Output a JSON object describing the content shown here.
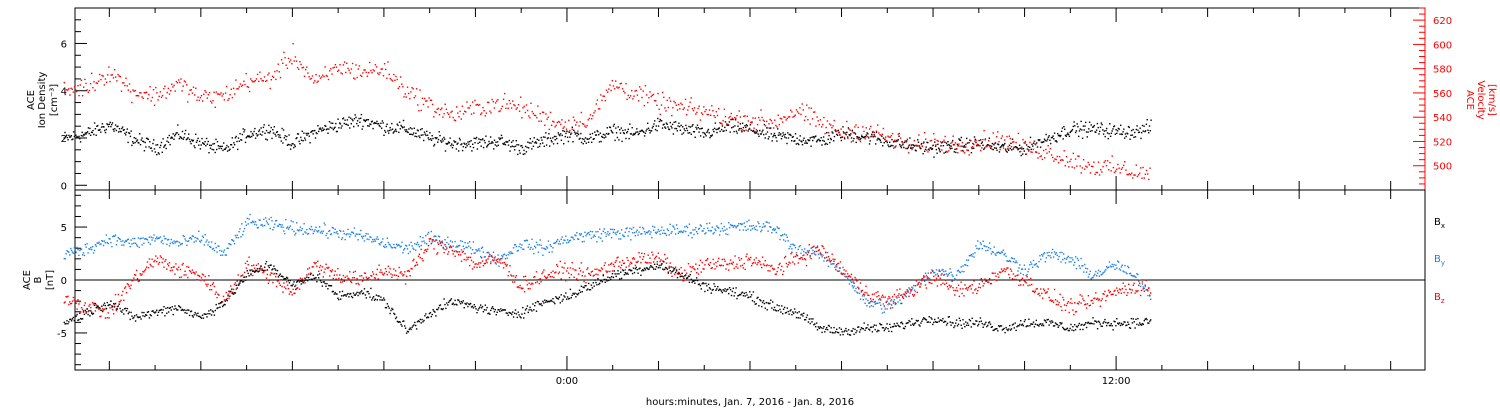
{
  "chart_data": [
    {
      "type": "scatter",
      "panel": "top",
      "left_axis": {
        "label_lines": [
          "ACE",
          "Ion Density",
          "[cm⁻³]"
        ],
        "ticks": [
          0,
          2,
          4,
          6
        ],
        "ylim": [
          -0.2,
          7.5
        ]
      },
      "right_axis": {
        "label_lines": [
          "ACE",
          "Velocity",
          "[km/s]"
        ],
        "ticks": [
          500,
          520,
          540,
          560,
          580,
          600,
          620
        ],
        "ylim": [
          480,
          630
        ]
      },
      "series": [
        {
          "color": "#000000",
          "axis": "left",
          "x_hours": [
            -11.0,
            -10.5,
            -10.0,
            -9.5,
            -9.0,
            -8.5,
            -8.0,
            -7.5,
            -7.0,
            -6.5,
            -6.0,
            -5.5,
            -5.0,
            -4.5,
            -4.0,
            -3.5,
            -3.0,
            -2.5,
            -2.0,
            -1.5,
            -1.0,
            -0.5,
            0.0,
            0.5,
            1.0,
            1.5,
            2.0,
            2.5,
            3.0,
            3.5,
            4.0,
            4.5,
            5.0,
            5.5,
            6.0,
            6.5,
            7.0,
            7.5,
            8.0,
            8.5,
            9.0,
            9.5,
            10.0,
            10.5,
            11.0,
            11.5,
            12.0,
            12.5,
            12.75
          ],
          "values": [
            2.0,
            2.2,
            2.6,
            2.0,
            1.6,
            2.2,
            1.8,
            1.5,
            2.2,
            2.4,
            1.8,
            2.3,
            2.6,
            2.8,
            2.5,
            2.4,
            2.0,
            1.8,
            1.8,
            1.9,
            1.6,
            1.9,
            2.2,
            2.0,
            2.3,
            2.2,
            2.6,
            2.4,
            2.2,
            2.5,
            2.4,
            2.1,
            2.0,
            1.9,
            2.2,
            2.1,
            1.9,
            1.7,
            1.6,
            1.7,
            1.8,
            1.6,
            1.6,
            2.0,
            2.4,
            2.4,
            2.3,
            2.3,
            2.5
          ]
        },
        {
          "color": "#ff0000",
          "axis": "right",
          "x_hours": [
            -11.0,
            -10.5,
            -10.0,
            -9.5,
            -9.0,
            -8.5,
            -8.0,
            -7.5,
            -7.0,
            -6.5,
            -6.0,
            -5.5,
            -5.0,
            -4.5,
            -4.0,
            -3.5,
            -3.0,
            -2.5,
            -2.0,
            -1.5,
            -1.0,
            -0.5,
            0.0,
            0.5,
            1.0,
            1.5,
            2.0,
            2.5,
            3.0,
            3.5,
            4.0,
            4.5,
            5.0,
            5.5,
            6.0,
            6.5,
            7.0,
            7.5,
            8.0,
            8.5,
            9.0,
            9.5,
            10.0,
            10.5,
            11.0,
            11.5,
            12.0,
            12.5,
            12.75
          ],
          "values": [
            562,
            566,
            578,
            562,
            558,
            568,
            556,
            558,
            570,
            572,
            592,
            568,
            582,
            578,
            580,
            562,
            550,
            542,
            548,
            552,
            548,
            540,
            534,
            540,
            568,
            560,
            552,
            548,
            545,
            540,
            538,
            536,
            546,
            536,
            528,
            530,
            524,
            516,
            520,
            518,
            520,
            522,
            515,
            512,
            505,
            500,
            498,
            495,
            492
          ]
        }
      ]
    },
    {
      "type": "scatter",
      "panel": "bottom",
      "left_axis": {
        "label_lines": [
          "ACE",
          "B",
          "[nT]"
        ],
        "ticks": [
          -5,
          0,
          5
        ],
        "ylim": [
          -8.5,
          8.5
        ]
      },
      "legend": [
        "Bx",
        "By",
        "Bz"
      ],
      "series": [
        {
          "name": "Bx",
          "color": "#000000",
          "x_hours": [
            -11.0,
            -10.5,
            -10.0,
            -9.5,
            -9.0,
            -8.5,
            -8.0,
            -7.5,
            -7.0,
            -6.5,
            -6.0,
            -5.5,
            -5.0,
            -4.5,
            -4.0,
            -3.5,
            -3.0,
            -2.5,
            -2.0,
            -1.5,
            -1.0,
            -0.5,
            0.0,
            0.5,
            1.0,
            1.5,
            2.0,
            2.5,
            3.0,
            3.5,
            4.0,
            4.5,
            5.0,
            5.5,
            6.0,
            6.5,
            7.0,
            7.5,
            8.0,
            8.5,
            9.0,
            9.5,
            10.0,
            10.5,
            11.0,
            11.5,
            12.0,
            12.5,
            12.75
          ],
          "values": [
            -4.0,
            -3.0,
            -2.0,
            -3.5,
            -3.0,
            -2.5,
            -3.5,
            -2.0,
            0.5,
            1.5,
            -0.5,
            0.5,
            -1.5,
            -1.0,
            -2.0,
            -4.8,
            -3.0,
            -2.0,
            -2.5,
            -3.0,
            -3.0,
            -2.0,
            -1.5,
            -0.5,
            0.5,
            1.0,
            1.5,
            0.5,
            -0.5,
            -1.0,
            -1.5,
            -2.5,
            -3.0,
            -4.5,
            -4.8,
            -4.5,
            -4.5,
            -4.0,
            -3.5,
            -4.0,
            -4.0,
            -4.5,
            -4.0,
            -4.0,
            -4.5,
            -4.0,
            -4.0,
            -4.0,
            -3.8
          ]
        },
        {
          "name": "By",
          "color": "#1e82e6",
          "x_hours": [
            -11.0,
            -10.5,
            -10.0,
            -9.5,
            -9.0,
            -8.5,
            -8.0,
            -7.5,
            -7.0,
            -6.5,
            -6.0,
            -5.5,
            -5.0,
            -4.5,
            -4.0,
            -3.5,
            -3.0,
            -2.5,
            -2.0,
            -1.5,
            -1.0,
            -0.5,
            0.0,
            0.5,
            1.0,
            1.5,
            2.0,
            2.5,
            3.0,
            3.5,
            4.0,
            4.5,
            5.0,
            5.5,
            6.0,
            6.5,
            7.0,
            7.5,
            8.0,
            8.5,
            9.0,
            9.5,
            10.0,
            10.5,
            11.0,
            11.5,
            12.0,
            12.5,
            12.75
          ],
          "values": [
            2.5,
            3.0,
            4.0,
            3.5,
            4.0,
            3.5,
            4.0,
            2.5,
            5.5,
            5.3,
            5.0,
            4.8,
            4.5,
            4.2,
            3.5,
            3.0,
            4.0,
            3.5,
            3.0,
            2.0,
            3.5,
            3.0,
            4.0,
            4.3,
            4.5,
            4.5,
            4.7,
            4.7,
            4.9,
            5.0,
            5.1,
            5.0,
            3.0,
            2.5,
            1.0,
            -2.0,
            -2.5,
            -1.0,
            1.0,
            0.5,
            3.5,
            2.5,
            1.0,
            2.5,
            2.0,
            0.5,
            1.5,
            0.0,
            -1.5
          ]
        },
        {
          "name": "Bz",
          "color": "#ff0000",
          "x_hours": [
            -11.0,
            -10.5,
            -10.0,
            -9.5,
            -9.0,
            -8.5,
            -8.0,
            -7.5,
            -7.0,
            -6.5,
            -6.0,
            -5.5,
            -5.0,
            -4.5,
            -4.0,
            -3.5,
            -3.0,
            -2.5,
            -2.0,
            -1.5,
            -1.0,
            -0.5,
            0.0,
            0.5,
            1.0,
            1.5,
            2.0,
            2.5,
            3.0,
            3.5,
            4.0,
            4.5,
            5.0,
            5.5,
            6.0,
            6.5,
            7.0,
            7.5,
            8.0,
            8.5,
            9.0,
            9.5,
            10.0,
            10.5,
            11.0,
            11.5,
            12.0,
            12.5,
            12.75
          ],
          "values": [
            -1.5,
            -2.5,
            -3.0,
            0.0,
            2.0,
            1.0,
            0.5,
            -2.0,
            1.5,
            0.5,
            -1.0,
            1.5,
            0.5,
            0.0,
            1.0,
            0.5,
            3.5,
            3.0,
            1.5,
            2.0,
            -0.5,
            0.5,
            1.0,
            0.5,
            1.5,
            2.0,
            2.0,
            0.5,
            1.5,
            1.5,
            2.0,
            1.0,
            2.0,
            3.0,
            1.0,
            -1.0,
            -2.0,
            -1.0,
            0.5,
            -1.0,
            -0.5,
            1.0,
            0.0,
            -1.5,
            -2.5,
            -2.0,
            -1.0,
            -0.5,
            -1.0
          ]
        }
      ]
    }
  ],
  "x_axis": {
    "tick_labels": [
      "0:00",
      "12:00"
    ],
    "tick_hours": [
      0,
      12
    ],
    "xlim_hours": [
      -10.75,
      18.75
    ],
    "title": "hours:minutes, Jan.  7, 2016 - Jan.  8, 2016"
  },
  "legend_labels": {
    "bx_main": "B",
    "bx_sub": "x",
    "by_main": "B",
    "by_sub": "y",
    "bz_main": "B",
    "bz_sub": "z"
  },
  "colors": {
    "black": "#000000",
    "red": "#ff0000",
    "blue": "#1e82e6"
  }
}
